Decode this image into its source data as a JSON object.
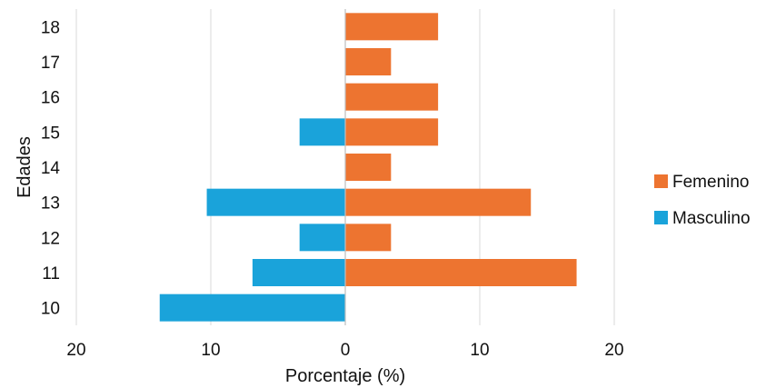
{
  "chart_data": {
    "type": "bar",
    "orientation": "horizontal",
    "layout": "diverging",
    "xlabel": "Porcentaje (%)",
    "ylabel": "Edades",
    "xlim": [
      -20,
      20
    ],
    "x_ticks": [
      -20,
      -10,
      0,
      10,
      20
    ],
    "x_tick_labels": [
      "20",
      "10",
      "0",
      "10",
      "20"
    ],
    "grid": "vertical",
    "legend_position": "right",
    "categories": [
      "10",
      "11",
      "12",
      "13",
      "14",
      "15",
      "16",
      "17",
      "18"
    ],
    "series": [
      {
        "name": "Femenino",
        "color": "#ed7430",
        "direction": "right",
        "values": [
          0,
          17.2,
          3.4,
          13.8,
          3.4,
          6.9,
          6.9,
          3.4,
          6.9
        ]
      },
      {
        "name": "Masculino",
        "color": "#1aa3da",
        "direction": "left",
        "values": [
          13.8,
          6.9,
          3.4,
          10.3,
          0,
          3.4,
          0,
          0,
          0
        ]
      }
    ]
  }
}
